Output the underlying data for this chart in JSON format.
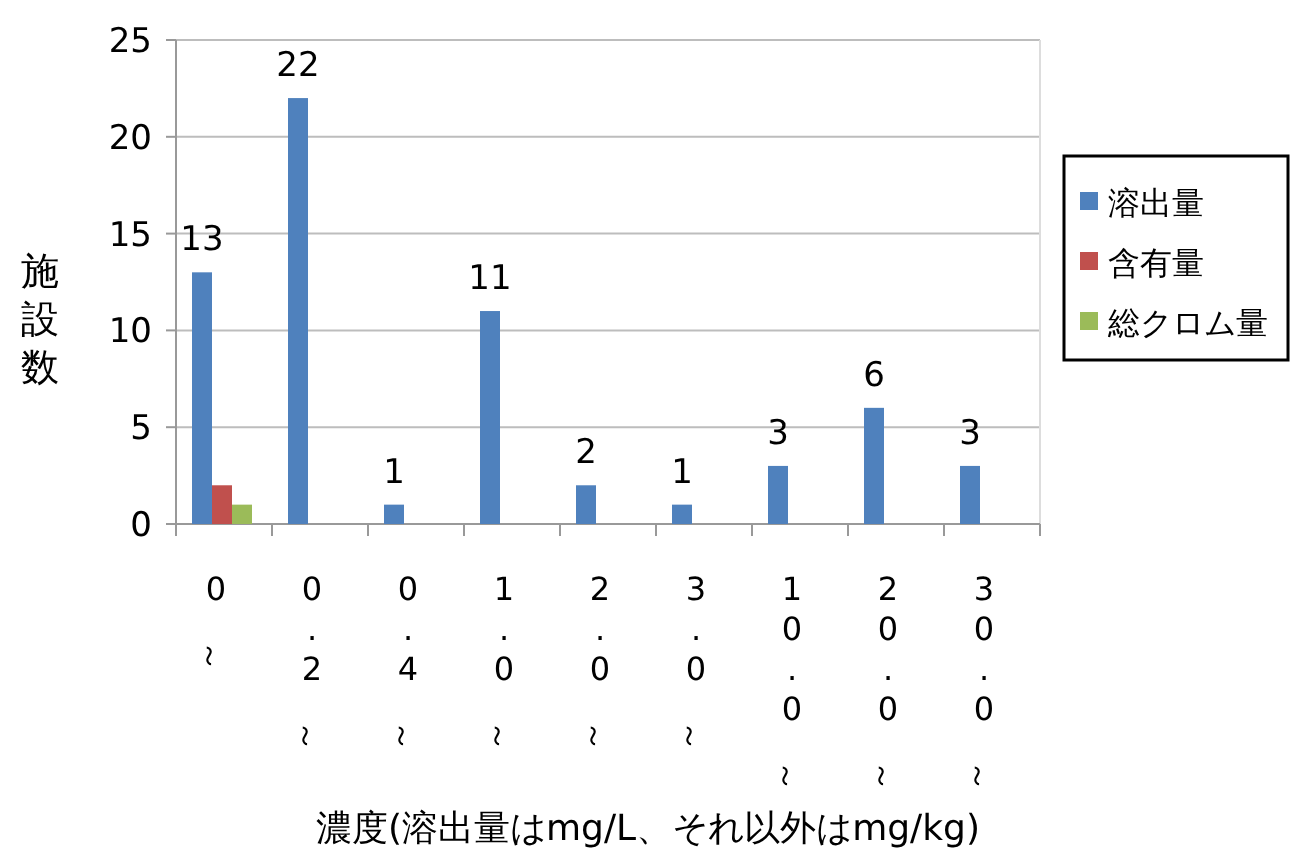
{
  "chart_data": {
    "type": "bar",
    "xlabel": "濃度(溶出量はmg/L、それ以外はmg/kg)",
    "ylabel": "施設数",
    "categories": [
      "0～",
      "0.2～",
      "0.4～",
      "1.0～",
      "2.0～",
      "3.0～",
      "10.0～",
      "20.0～",
      "30.0～"
    ],
    "series": [
      {
        "name": "溶出量",
        "color": "#4f81bd",
        "values": [
          13,
          22,
          1,
          11,
          2,
          1,
          3,
          6,
          3
        ],
        "value_labels": [
          "13",
          "22",
          "1",
          "11",
          "2",
          "1",
          "3",
          "6",
          "3"
        ]
      },
      {
        "name": "含有量",
        "color": "#c0504d",
        "values": [
          2,
          null,
          null,
          null,
          null,
          null,
          null,
          null,
          null
        ]
      },
      {
        "name": "総クロム量",
        "color": "#9bbb59",
        "values": [
          1,
          null,
          null,
          null,
          null,
          null,
          null,
          null,
          null
        ]
      }
    ],
    "ylim": [
      0,
      25
    ],
    "yticks": [
      0,
      5,
      10,
      15,
      20,
      25
    ],
    "grid": "y",
    "legend": "right"
  }
}
